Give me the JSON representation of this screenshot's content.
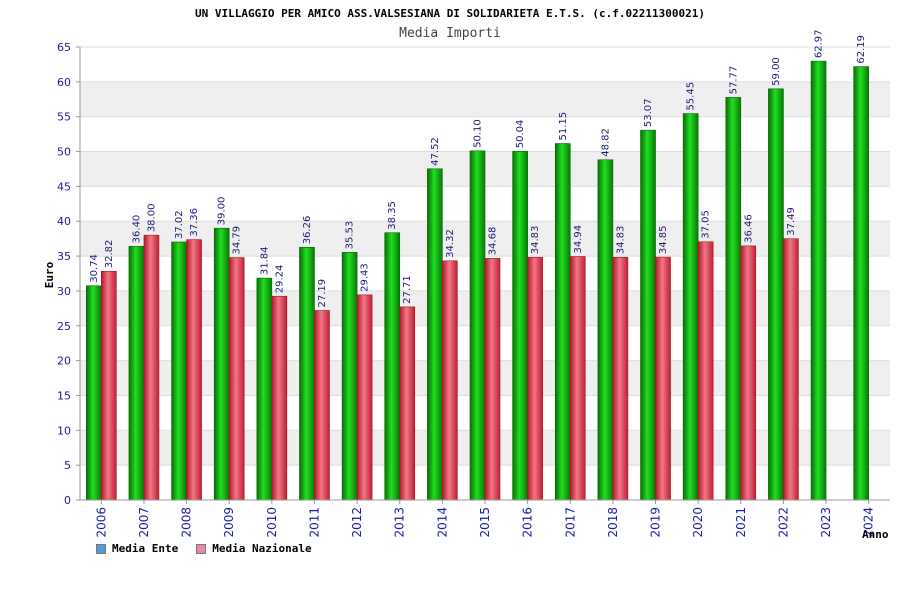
{
  "colors": {
    "ente": "#0cb50c",
    "nazionale": "#e8404f",
    "legend_ente": "#5b9bd5",
    "legend_nazionale": "#e889a8",
    "band": "#efefef",
    "axis": "#1a1aa6"
  },
  "legend": {
    "ente": "Media Ente",
    "nazionale": "Media Nazionale"
  },
  "chart_data": {
    "type": "bar",
    "title": "UN VILLAGGIO PER AMICO ASS.VALSESIANA DI SOLIDARIETA E.T.S. (c.f.02211300021)",
    "subtitle": "Media Importi",
    "xlabel": "Anno",
    "ylabel": "Euro",
    "ylim": [
      0,
      65
    ],
    "yticks": [
      0,
      5,
      10,
      15,
      20,
      25,
      30,
      35,
      40,
      45,
      50,
      55,
      60,
      65
    ],
    "categories": [
      "2006",
      "2007",
      "2008",
      "2009",
      "2010",
      "2011",
      "2012",
      "2013",
      "2014",
      "2015",
      "2016",
      "2017",
      "2018",
      "2019",
      "2020",
      "2021",
      "2022",
      "2023",
      "2024"
    ],
    "series": [
      {
        "name": "Media Ente",
        "values": [
          30.74,
          36.4,
          37.02,
          39.0,
          31.84,
          36.26,
          35.53,
          38.35,
          47.52,
          50.1,
          50.04,
          51.15,
          48.82,
          53.07,
          55.45,
          57.77,
          59.0,
          62.97,
          62.19
        ],
        "labels": [
          "30.74",
          "36.40",
          "37.02",
          "39.00",
          "31.84",
          "36.26",
          "35.53",
          "38.35",
          "47.52",
          "50.10",
          "50.04",
          "51.15",
          "48.82",
          "53.07",
          "55.45",
          "57.77",
          "59.00",
          "62.97",
          "62.19"
        ]
      },
      {
        "name": "Media Nazionale",
        "values": [
          32.82,
          38.0,
          37.36,
          34.79,
          29.24,
          27.19,
          29.43,
          27.71,
          34.32,
          34.68,
          34.83,
          34.94,
          34.83,
          34.85,
          37.05,
          36.46,
          37.49,
          null,
          null
        ],
        "labels": [
          "32.82",
          "38.00",
          "37.36",
          "34.79",
          "29.24",
          "27.19",
          "29.43",
          "27.71",
          "34.32",
          "34.68",
          "34.83",
          "34.94",
          "34.83",
          "34.85",
          "37.05",
          "36.46",
          "37.49",
          null,
          null
        ]
      }
    ],
    "grid": true,
    "legend_position": "bottom-left"
  }
}
